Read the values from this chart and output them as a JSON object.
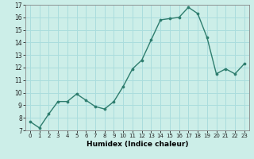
{
  "x": [
    0,
    1,
    2,
    3,
    4,
    5,
    6,
    7,
    8,
    9,
    10,
    11,
    12,
    13,
    14,
    15,
    16,
    17,
    18,
    19,
    20,
    21,
    22,
    23
  ],
  "y": [
    7.7,
    7.2,
    8.3,
    9.3,
    9.3,
    9.9,
    9.4,
    8.9,
    8.7,
    9.3,
    10.5,
    11.9,
    12.6,
    14.2,
    15.8,
    15.9,
    16.0,
    16.8,
    16.3,
    14.4,
    11.5,
    11.9,
    11.5,
    12.3
  ],
  "line_color": "#2e7d6e",
  "marker_color": "#2e7d6e",
  "bg_color": "#cceee8",
  "grid_color": "#aadddd",
  "xlabel": "Humidex (Indice chaleur)",
  "ylim": [
    7,
    17
  ],
  "xlim": [
    -0.5,
    23.5
  ],
  "yticks": [
    7,
    8,
    9,
    10,
    11,
    12,
    13,
    14,
    15,
    16,
    17
  ],
  "xticks": [
    0,
    1,
    2,
    3,
    4,
    5,
    6,
    7,
    8,
    9,
    10,
    11,
    12,
    13,
    14,
    15,
    16,
    17,
    18,
    19,
    20,
    21,
    22,
    23
  ]
}
